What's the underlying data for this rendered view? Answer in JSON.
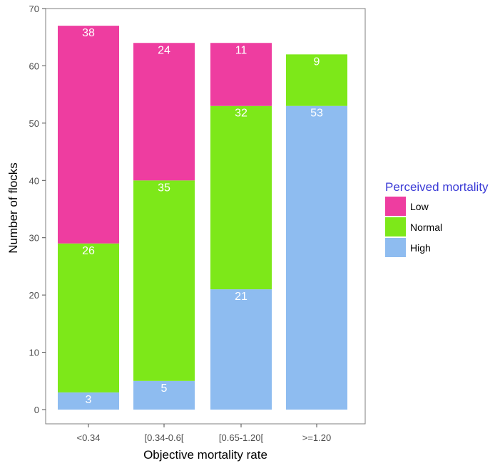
{
  "chart_data": {
    "type": "bar",
    "stacked": true,
    "categories": [
      "<0.34",
      "[0.34-0.6[",
      "[0.65-1.20[",
      ">=1.20"
    ],
    "series": [
      {
        "name": "High",
        "values": [
          3,
          5,
          21,
          53
        ],
        "color": "#8ebcf0"
      },
      {
        "name": "Normal",
        "values": [
          26,
          35,
          32,
          9
        ],
        "color": "#7de819"
      },
      {
        "name": "Low",
        "values": [
          38,
          24,
          11,
          null
        ],
        "color": "#ee3da0"
      }
    ],
    "xlabel": "Objective mortality rate",
    "ylabel": "Number of flocks",
    "ylim": [
      0,
      70
    ],
    "yticks": [
      0,
      10,
      20,
      30,
      40,
      50,
      60,
      70
    ],
    "grid": false,
    "legend": {
      "title": "Perceived mortality",
      "position": "right",
      "entries": [
        "Low",
        "Normal",
        "High"
      ]
    }
  }
}
